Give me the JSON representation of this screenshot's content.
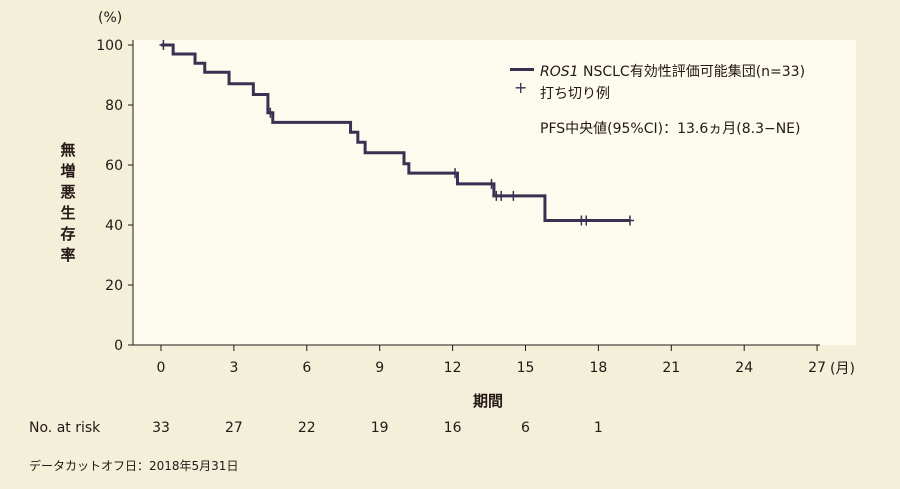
{
  "chart_data": {
    "type": "line",
    "y_unit": "(%)",
    "x_unit": "(月)",
    "ylabel": "無増悪生存率",
    "xlabel": "期間",
    "ylim": [
      0,
      100
    ],
    "xlim": [
      0,
      27
    ],
    "yticks": [
      "0",
      "20",
      "40",
      "60",
      "80",
      "100"
    ],
    "xticks": [
      "0",
      "3",
      "6",
      "9",
      "12",
      "15",
      "18",
      "21",
      "24",
      "27"
    ],
    "series": [
      {
        "name_italic": "ROS1",
        "name_rest": " NSCLC有効性評価可能集団(n=33)",
        "color": "#3b2f52",
        "steps": [
          [
            0,
            100
          ],
          [
            0.5,
            97
          ],
          [
            1.4,
            93.9
          ],
          [
            1.8,
            90.9
          ],
          [
            2.8,
            87.1
          ],
          [
            3.8,
            83.5
          ],
          [
            4.4,
            77.4
          ],
          [
            4.6,
            74.2
          ],
          [
            7.8,
            70.9
          ],
          [
            8.1,
            67.6
          ],
          [
            8.4,
            64.1
          ],
          [
            10.0,
            60.4
          ],
          [
            10.2,
            57.3
          ],
          [
            12.2,
            53.7
          ],
          [
            13.7,
            49.7
          ],
          [
            15.8,
            41.5
          ],
          [
            19.3,
            41.5
          ]
        ],
        "censored": [
          [
            0.1,
            100
          ],
          [
            4.5,
            77.4
          ],
          [
            12.1,
            57.3
          ],
          [
            13.6,
            53.7
          ],
          [
            13.8,
            49.7
          ],
          [
            14.0,
            49.7
          ],
          [
            14.5,
            49.7
          ],
          [
            17.3,
            41.5
          ],
          [
            17.5,
            41.5
          ],
          [
            19.3,
            41.5
          ]
        ]
      }
    ],
    "legend_censored": "打ち切り例",
    "annotation": "PFS中央値(95%CI)：13.6ヵ月(8.3−NE)",
    "at_risk": {
      "label": "No. at risk",
      "times": [
        0,
        3,
        6,
        9,
        12,
        15,
        18
      ],
      "values": [
        "33",
        "27",
        "22",
        "19",
        "16",
        "6",
        "1"
      ]
    },
    "footnote": "データカットオフ日：2018年5月31日"
  }
}
